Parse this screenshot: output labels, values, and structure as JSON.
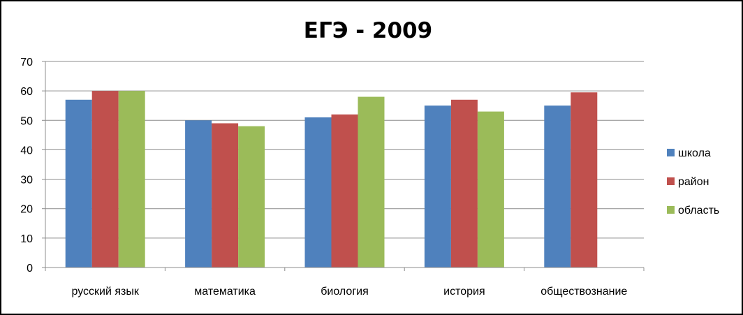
{
  "chart_data": {
    "type": "bar",
    "title": "ЕГЭ - 2009",
    "xlabel": "",
    "ylabel": "",
    "ylim": [
      0,
      70
    ],
    "yticks": [
      0,
      10,
      20,
      30,
      40,
      50,
      60,
      70
    ],
    "grid": true,
    "legend_position": "right",
    "categories": [
      "русский язык",
      "математика",
      "биология",
      "история",
      "обществознание"
    ],
    "series": [
      {
        "name": "школа",
        "color": "#4F81BD",
        "values": [
          57,
          50,
          51,
          55,
          55
        ]
      },
      {
        "name": "район",
        "color": "#C0504D",
        "values": [
          60,
          49,
          52,
          57,
          59.5
        ]
      },
      {
        "name": "область",
        "color": "#9BBB59",
        "values": [
          60,
          48,
          58,
          53,
          null
        ]
      }
    ]
  }
}
